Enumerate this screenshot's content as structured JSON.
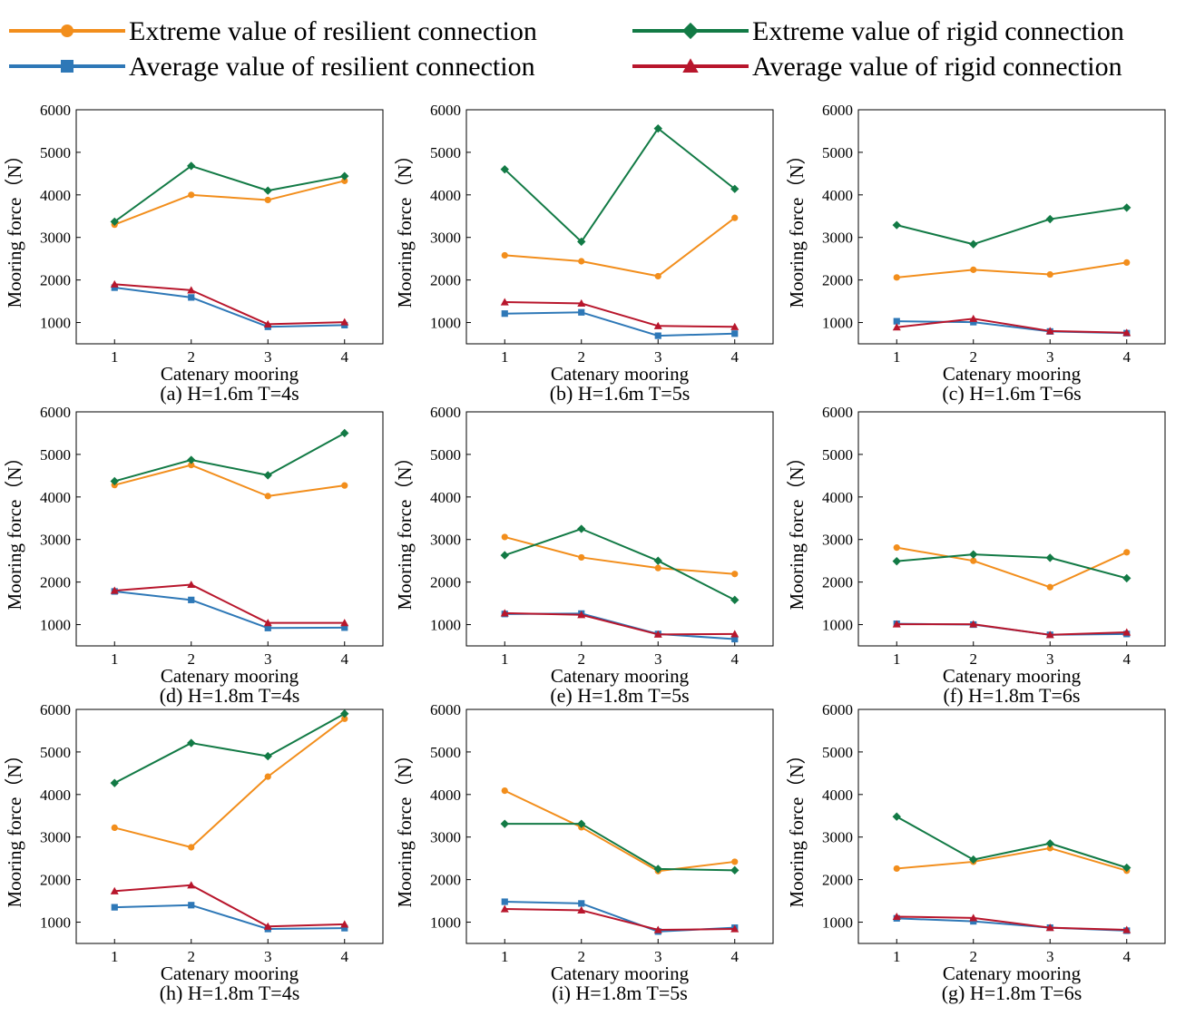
{
  "legend": [
    {
      "label": "Extreme value of resilient connection",
      "color": "#f28e1c",
      "marker": "circle"
    },
    {
      "label": "Extreme value of rigid connection",
      "color": "#127a45",
      "marker": "diamond"
    },
    {
      "label": "Average value of resilient connection",
      "color": "#2e78b7",
      "marker": "square"
    },
    {
      "label": "Average value of rigid connection",
      "color": "#b8162c",
      "marker": "triangle"
    }
  ],
  "chart_data": [
    {
      "type": "line",
      "caption": "(a)  H=1.6m T=4s",
      "xlabel": "Catenary mooring",
      "ylabel": "Mooring force（N）",
      "x": [
        1,
        2,
        3,
        4
      ],
      "xlim": [
        0.5,
        4.5
      ],
      "ylim": [
        500,
        6000
      ],
      "yticks": [
        1000,
        2000,
        3000,
        4000,
        5000,
        6000
      ],
      "series": [
        {
          "name": "Extreme value of resilient connection",
          "values": [
            3300,
            4000,
            3880,
            4330
          ]
        },
        {
          "name": "Extreme value of rigid connection",
          "values": [
            3370,
            4680,
            4100,
            4440
          ]
        },
        {
          "name": "Average value of resilient connection",
          "values": [
            1820,
            1590,
            900,
            940
          ]
        },
        {
          "name": "Average value of rigid connection",
          "values": [
            1900,
            1760,
            960,
            1010
          ]
        }
      ]
    },
    {
      "type": "line",
      "caption": "(b)  H=1.6m T=5s",
      "xlabel": "Catenary mooring",
      "ylabel": "Mooring force（N）",
      "x": [
        1,
        2,
        3,
        4
      ],
      "xlim": [
        0.5,
        4.5
      ],
      "ylim": [
        500,
        6000
      ],
      "yticks": [
        1000,
        2000,
        3000,
        4000,
        5000,
        6000
      ],
      "series": [
        {
          "name": "Extreme value of resilient connection",
          "values": [
            2580,
            2440,
            2090,
            3460
          ]
        },
        {
          "name": "Extreme value of rigid connection",
          "values": [
            4600,
            2900,
            5560,
            4140
          ]
        },
        {
          "name": "Average value of resilient connection",
          "values": [
            1210,
            1240,
            690,
            740
          ]
        },
        {
          "name": "Average value of rigid connection",
          "values": [
            1480,
            1450,
            920,
            900
          ]
        }
      ]
    },
    {
      "type": "line",
      "caption": "(c)  H=1.6m T=6s",
      "xlabel": "Catenary mooring",
      "ylabel": "Mooring force（N）",
      "x": [
        1,
        2,
        3,
        4
      ],
      "xlim": [
        0.5,
        4.5
      ],
      "ylim": [
        500,
        6000
      ],
      "yticks": [
        1000,
        2000,
        3000,
        4000,
        5000,
        6000
      ],
      "series": [
        {
          "name": "Extreme value of resilient connection",
          "values": [
            2060,
            2240,
            2130,
            2410
          ]
        },
        {
          "name": "Extreme value of rigid connection",
          "values": [
            3290,
            2840,
            3430,
            3700
          ]
        },
        {
          "name": "Average value of resilient connection",
          "values": [
            1030,
            1010,
            790,
            750
          ]
        },
        {
          "name": "Average value of rigid connection",
          "values": [
            890,
            1090,
            800,
            760
          ]
        }
      ]
    },
    {
      "type": "line",
      "caption": "(d)  H=1.8m T=4s",
      "xlabel": "Catenary mooring",
      "ylabel": "Mooring force（N）",
      "x": [
        1,
        2,
        3,
        4
      ],
      "xlim": [
        0.5,
        4.5
      ],
      "ylim": [
        500,
        6000
      ],
      "yticks": [
        1000,
        2000,
        3000,
        4000,
        5000,
        6000
      ],
      "series": [
        {
          "name": "Extreme value of resilient connection",
          "values": [
            4280,
            4750,
            4020,
            4270
          ]
        },
        {
          "name": "Extreme value of rigid connection",
          "values": [
            4370,
            4870,
            4510,
            5500
          ]
        },
        {
          "name": "Average value of resilient connection",
          "values": [
            1780,
            1580,
            920,
            930
          ]
        },
        {
          "name": "Average value of rigid connection",
          "values": [
            1800,
            1940,
            1040,
            1040
          ]
        }
      ]
    },
    {
      "type": "line",
      "caption": "(e)  H=1.8m T=5s",
      "xlabel": "Catenary mooring",
      "ylabel": "Mooring force（N）",
      "x": [
        1,
        2,
        3,
        4
      ],
      "xlim": [
        0.5,
        4.5
      ],
      "ylim": [
        500,
        6000
      ],
      "yticks": [
        1000,
        2000,
        3000,
        4000,
        5000,
        6000
      ],
      "series": [
        {
          "name": "Extreme value of resilient connection",
          "values": [
            3060,
            2580,
            2330,
            2190
          ]
        },
        {
          "name": "Extreme value of rigid connection",
          "values": [
            2630,
            3250,
            2500,
            1580
          ]
        },
        {
          "name": "Average value of resilient connection",
          "values": [
            1250,
            1260,
            780,
            660
          ]
        },
        {
          "name": "Average value of rigid connection",
          "values": [
            1270,
            1230,
            770,
            780
          ]
        }
      ]
    },
    {
      "type": "line",
      "caption": "(f)  H=1.8m T=6s",
      "xlabel": "Catenary mooring",
      "ylabel": "Mooring force（N）",
      "x": [
        1,
        2,
        3,
        4
      ],
      "xlim": [
        0.5,
        4.5
      ],
      "ylim": [
        500,
        6000
      ],
      "yticks": [
        1000,
        2000,
        3000,
        4000,
        5000,
        6000
      ],
      "series": [
        {
          "name": "Extreme value of resilient connection",
          "values": [
            2810,
            2500,
            1880,
            2700
          ]
        },
        {
          "name": "Extreme value of rigid connection",
          "values": [
            2490,
            2650,
            2570,
            2090
          ]
        },
        {
          "name": "Average value of resilient connection",
          "values": [
            1020,
            1000,
            760,
            780
          ]
        },
        {
          "name": "Average value of rigid connection",
          "values": [
            1010,
            1010,
            760,
            820
          ]
        }
      ]
    },
    {
      "type": "line",
      "caption": "(h)  H=1.8m T=4s",
      "xlabel": "Catenary mooring",
      "ylabel": "Mooring force（N）",
      "x": [
        1,
        2,
        3,
        4
      ],
      "xlim": [
        0.5,
        4.5
      ],
      "ylim": [
        500,
        6000
      ],
      "yticks": [
        1000,
        2000,
        3000,
        4000,
        5000,
        6000
      ],
      "series": [
        {
          "name": "Extreme value of resilient connection",
          "values": [
            3220,
            2760,
            4420,
            5780
          ]
        },
        {
          "name": "Extreme value of rigid connection",
          "values": [
            4270,
            5210,
            4900,
            5900
          ]
        },
        {
          "name": "Average value of resilient connection",
          "values": [
            1350,
            1400,
            840,
            860
          ]
        },
        {
          "name": "Average value of rigid connection",
          "values": [
            1730,
            1870,
            900,
            950
          ]
        }
      ]
    },
    {
      "type": "line",
      "caption": "(i)  H=1.8m T=5s",
      "xlabel": "Catenary mooring",
      "ylabel": "Mooring force（N）",
      "x": [
        1,
        2,
        3,
        4
      ],
      "xlim": [
        0.5,
        4.5
      ],
      "ylim": [
        500,
        6000
      ],
      "yticks": [
        1000,
        2000,
        3000,
        4000,
        5000,
        6000
      ],
      "series": [
        {
          "name": "Extreme value of resilient connection",
          "values": [
            4090,
            3230,
            2200,
            2420
          ]
        },
        {
          "name": "Extreme value of rigid connection",
          "values": [
            3310,
            3310,
            2250,
            2220
          ]
        },
        {
          "name": "Average value of resilient connection",
          "values": [
            1480,
            1440,
            780,
            870
          ]
        },
        {
          "name": "Average value of rigid connection",
          "values": [
            1310,
            1280,
            820,
            840
          ]
        }
      ]
    },
    {
      "type": "line",
      "caption": "(g)  H=1.8m T=6s",
      "xlabel": "Catenary mooring",
      "ylabel": "Mooring force（N）",
      "x": [
        1,
        2,
        3,
        4
      ],
      "xlim": [
        0.5,
        4.5
      ],
      "ylim": [
        500,
        6000
      ],
      "yticks": [
        1000,
        2000,
        3000,
        4000,
        5000,
        6000
      ],
      "series": [
        {
          "name": "Extreme value of resilient connection",
          "values": [
            2260,
            2420,
            2740,
            2210
          ]
        },
        {
          "name": "Extreme value of rigid connection",
          "values": [
            3480,
            2470,
            2850,
            2280
          ]
        },
        {
          "name": "Average value of resilient connection",
          "values": [
            1090,
            1020,
            870,
            800
          ]
        },
        {
          "name": "Average value of rigid connection",
          "values": [
            1130,
            1100,
            870,
            820
          ]
        }
      ]
    }
  ]
}
